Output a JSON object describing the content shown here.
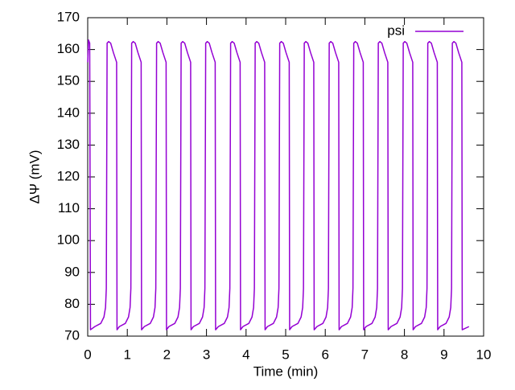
{
  "chart_data": {
    "type": "line",
    "x_label": "Time (min)",
    "y_label": "ΔΨ (mV)",
    "x": [
      0,
      0.02,
      0.05,
      0.07,
      0.18,
      0.33,
      0.41,
      0.45,
      0.47,
      0.49,
      0.53,
      0.58,
      0.65,
      0.73,
      0.74,
      0.8,
      0.95,
      1.03,
      1.07,
      1.09,
      1.11,
      1.15,
      1.2,
      1.27,
      1.35,
      1.36,
      1.43,
      1.58,
      1.66,
      1.7,
      1.72,
      1.74,
      1.78,
      1.83,
      1.9,
      1.98,
      1.99,
      2.05,
      2.2,
      2.28,
      2.32,
      2.34,
      2.36,
      2.4,
      2.45,
      2.52,
      2.6,
      2.61,
      2.67,
      2.82,
      2.9,
      2.94,
      2.96,
      2.98,
      3.02,
      3.07,
      3.14,
      3.22,
      3.23,
      3.3,
      3.45,
      3.53,
      3.57,
      3.59,
      3.61,
      3.65,
      3.7,
      3.77,
      3.85,
      3.86,
      3.92,
      4.07,
      4.15,
      4.19,
      4.21,
      4.23,
      4.27,
      4.32,
      4.39,
      4.47,
      4.48,
      4.54,
      4.69,
      4.77,
      4.81,
      4.83,
      4.85,
      4.89,
      4.94,
      5.01,
      5.09,
      5.1,
      5.16,
      5.31,
      5.39,
      5.43,
      5.45,
      5.47,
      5.51,
      5.56,
      5.63,
      5.71,
      5.72,
      5.79,
      5.94,
      6.02,
      6.06,
      6.08,
      6.1,
      6.14,
      6.19,
      6.26,
      6.34,
      6.35,
      6.41,
      6.56,
      6.64,
      6.68,
      6.7,
      6.72,
      6.76,
      6.81,
      6.88,
      6.96,
      6.97,
      7.03,
      7.18,
      7.26,
      7.3,
      7.32,
      7.34,
      7.38,
      7.43,
      7.5,
      7.58,
      7.59,
      7.66,
      7.81,
      7.89,
      7.93,
      7.95,
      7.97,
      8.01,
      8.06,
      8.13,
      8.21,
      8.22,
      8.28,
      8.43,
      8.51,
      8.55,
      8.57,
      8.59,
      8.63,
      8.68,
      8.75,
      8.83,
      8.84,
      8.9,
      9.05,
      9.13,
      9.17,
      9.19,
      9.21,
      9.25,
      9.3,
      9.37,
      9.45,
      9.46,
      9.63
    ],
    "series": [
      {
        "name": "psi",
        "color": "#9400d3",
        "values": [
          156,
          163,
          162,
          72,
          73,
          74,
          76,
          79,
          85,
          162,
          162.5,
          162,
          159,
          156,
          72,
          73,
          74,
          76,
          79,
          85,
          162,
          162.5,
          162,
          159,
          156,
          72,
          73,
          74,
          76,
          79,
          85,
          162,
          162.5,
          162,
          159,
          156,
          72,
          73,
          74,
          76,
          79,
          85,
          162,
          162.5,
          162,
          159,
          156,
          72,
          73,
          74,
          76,
          79,
          85,
          162,
          162.5,
          162,
          159,
          156,
          72,
          73,
          74,
          76,
          79,
          85,
          162,
          162.5,
          162,
          159,
          156,
          72,
          73,
          74,
          76,
          79,
          85,
          162,
          162.5,
          162,
          159,
          156,
          72,
          73,
          74,
          76,
          79,
          85,
          162,
          162.5,
          162,
          159,
          156,
          72,
          73,
          74,
          76,
          79,
          85,
          162,
          162.5,
          162,
          159,
          156,
          72,
          73,
          74,
          76,
          79,
          85,
          162,
          162.5,
          162,
          159,
          156,
          72,
          73,
          74,
          76,
          79,
          85,
          162,
          162.5,
          162,
          159,
          156,
          72,
          73,
          74,
          76,
          79,
          85,
          162,
          162.5,
          162,
          159,
          156,
          72,
          73,
          74,
          76,
          79,
          85,
          162,
          162.5,
          162,
          159,
          156,
          72,
          73,
          74,
          76,
          79,
          85,
          162,
          162.5,
          162,
          159,
          156,
          72,
          73,
          74,
          76,
          79,
          85,
          162,
          162.5,
          162,
          159,
          156,
          72,
          73
        ]
      }
    ],
    "xlim": [
      0,
      10
    ],
    "ylim": [
      70,
      170
    ],
    "xticks": [
      0,
      1,
      2,
      3,
      4,
      5,
      6,
      7,
      8,
      9,
      10
    ],
    "yticks": [
      70,
      80,
      90,
      100,
      110,
      120,
      130,
      140,
      150,
      160,
      170
    ],
    "legend": "top right",
    "grid": false
  }
}
